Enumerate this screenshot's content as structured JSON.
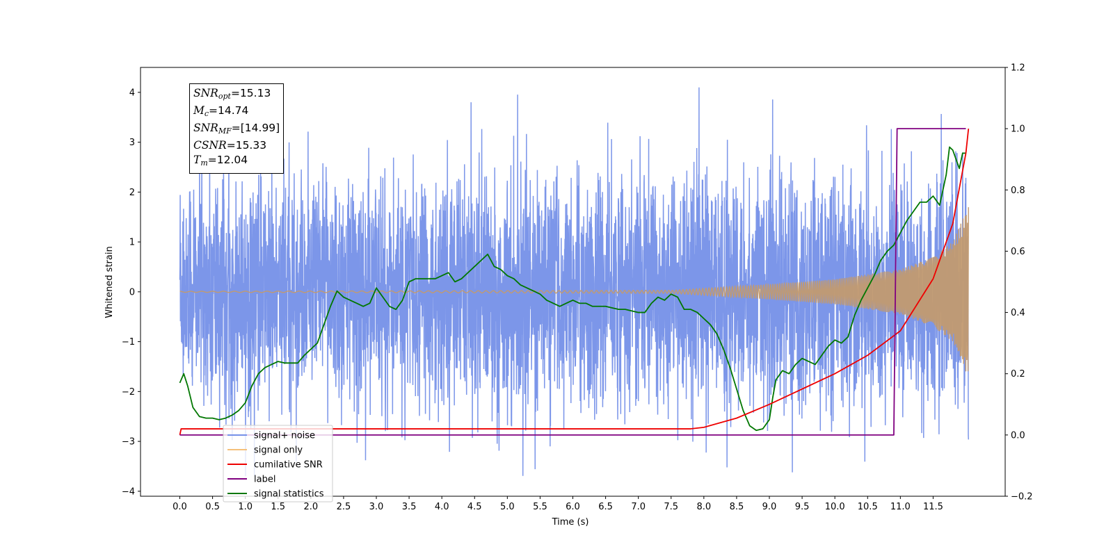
{
  "chart_data": {
    "type": "line",
    "xlabel": "Time (s)",
    "ylabel": "Whitened strain",
    "xlim": [
      -0.6,
      12.6
    ],
    "ylim": [
      -4.1,
      4.5
    ],
    "ylim_right": [
      -0.2,
      1.2
    ],
    "x_ticks": [
      "0.0",
      "0.5",
      "1.0",
      "1.5",
      "2.0",
      "2.5",
      "3.0",
      "3.5",
      "4.0",
      "4.5",
      "5.0",
      "5.5",
      "6.0",
      "6.5",
      "7.0",
      "7.5",
      "8.0",
      "8.5",
      "9.0",
      "9.5",
      "10.0",
      "10.5",
      "11.0",
      "11.5"
    ],
    "y_ticks_left": [
      "4",
      "3",
      "2",
      "1",
      "0",
      "−1",
      "−2",
      "−3",
      "−4"
    ],
    "y_ticks_right": [
      "1.2",
      "1.0",
      "0.8",
      "0.6",
      "0.4",
      "0.2",
      "0.0",
      "−0.2"
    ],
    "grid": false,
    "legend_position": "lower-left",
    "annotation": {
      "snr_opt": "=15.13",
      "mc": "=14.74",
      "snr_mf": "=[14.99]",
      "csnr": "=15.33",
      "tm": "=12.04"
    },
    "series": [
      {
        "name": "signal+ noise",
        "color": "#7590e8",
        "axis": "left",
        "description": "whitened noise, amplitude roughly ±2.5 with spikes to 4.1, over 0–12.04 s"
      },
      {
        "name": "signal only",
        "color": "#f5c07a",
        "axis": "left",
        "amplitude_envelope": {
          "x": [
            0,
            7.5,
            8.0,
            9.0,
            10.0,
            11.0,
            11.5,
            11.8,
            12.0,
            12.04
          ],
          "y": [
            0.01,
            0.03,
            0.07,
            0.15,
            0.25,
            0.45,
            0.7,
            1.0,
            1.6,
            1.7
          ]
        }
      },
      {
        "name": "cumilative SNR",
        "color": "#ee0000",
        "axis": "right",
        "x": [
          0,
          0.02,
          7.8,
          8.0,
          8.5,
          9.0,
          9.5,
          10.0,
          10.5,
          11.0,
          11.5,
          11.8,
          12.0,
          12.04
        ],
        "y": [
          0.0,
          0.02,
          0.02,
          0.025,
          0.055,
          0.1,
          0.15,
          0.2,
          0.26,
          0.34,
          0.51,
          0.69,
          0.92,
          1.0
        ]
      },
      {
        "name": "label",
        "color": "#800080",
        "axis": "right",
        "x": [
          0,
          10.9,
          10.95,
          12.0
        ],
        "y": [
          0,
          0,
          1,
          1
        ]
      },
      {
        "name": "signal statistics",
        "color": "#007700",
        "axis": "right",
        "x": [
          0,
          0.06,
          0.12,
          0.2,
          0.3,
          0.4,
          0.5,
          0.6,
          0.7,
          0.8,
          0.9,
          1.0,
          1.1,
          1.2,
          1.3,
          1.4,
          1.5,
          1.6,
          1.7,
          1.8,
          1.9,
          2.0,
          2.1,
          2.2,
          2.3,
          2.4,
          2.5,
          2.6,
          2.7,
          2.8,
          2.9,
          3.0,
          3.1,
          3.2,
          3.3,
          3.4,
          3.5,
          3.6,
          3.7,
          3.8,
          3.9,
          4.0,
          4.1,
          4.2,
          4.3,
          4.4,
          4.5,
          4.6,
          4.7,
          4.8,
          4.9,
          5.0,
          5.1,
          5.2,
          5.3,
          5.4,
          5.5,
          5.6,
          5.7,
          5.8,
          5.9,
          6.0,
          6.1,
          6.2,
          6.3,
          6.4,
          6.5,
          6.6,
          6.7,
          6.8,
          6.9,
          7.0,
          7.1,
          7.2,
          7.3,
          7.4,
          7.5,
          7.6,
          7.7,
          7.8,
          7.9,
          8.0,
          8.1,
          8.2,
          8.3,
          8.4,
          8.5,
          8.6,
          8.7,
          8.8,
          8.9,
          9.0,
          9.05,
          9.1,
          9.2,
          9.3,
          9.4,
          9.5,
          9.6,
          9.7,
          9.8,
          9.9,
          10.0,
          10.1,
          10.2,
          10.3,
          10.4,
          10.5,
          10.6,
          10.7,
          10.8,
          10.9,
          11.0,
          11.1,
          11.2,
          11.3,
          11.4,
          11.5,
          11.6,
          11.7,
          11.75,
          11.8,
          11.85,
          11.9,
          11.95,
          12.0
        ],
        "y": [
          0.17,
          0.2,
          0.16,
          0.09,
          0.06,
          0.055,
          0.055,
          0.05,
          0.055,
          0.065,
          0.08,
          0.105,
          0.16,
          0.2,
          0.22,
          0.23,
          0.24,
          0.235,
          0.235,
          0.235,
          0.26,
          0.28,
          0.3,
          0.36,
          0.42,
          0.47,
          0.45,
          0.44,
          0.43,
          0.42,
          0.43,
          0.48,
          0.45,
          0.42,
          0.41,
          0.44,
          0.5,
          0.51,
          0.51,
          0.51,
          0.51,
          0.52,
          0.53,
          0.5,
          0.51,
          0.53,
          0.55,
          0.57,
          0.59,
          0.55,
          0.54,
          0.52,
          0.51,
          0.49,
          0.48,
          0.47,
          0.46,
          0.44,
          0.43,
          0.42,
          0.43,
          0.44,
          0.43,
          0.43,
          0.42,
          0.42,
          0.42,
          0.415,
          0.41,
          0.41,
          0.405,
          0.4,
          0.4,
          0.43,
          0.45,
          0.44,
          0.46,
          0.45,
          0.41,
          0.41,
          0.4,
          0.38,
          0.36,
          0.33,
          0.28,
          0.22,
          0.15,
          0.08,
          0.03,
          0.015,
          0.02,
          0.05,
          0.12,
          0.18,
          0.21,
          0.2,
          0.23,
          0.25,
          0.24,
          0.23,
          0.26,
          0.29,
          0.31,
          0.3,
          0.32,
          0.39,
          0.44,
          0.48,
          0.52,
          0.57,
          0.6,
          0.62,
          0.66,
          0.7,
          0.73,
          0.76,
          0.76,
          0.78,
          0.75,
          0.85,
          0.94,
          0.93,
          0.9,
          0.87,
          0.92,
          0.92
        ]
      }
    ]
  }
}
